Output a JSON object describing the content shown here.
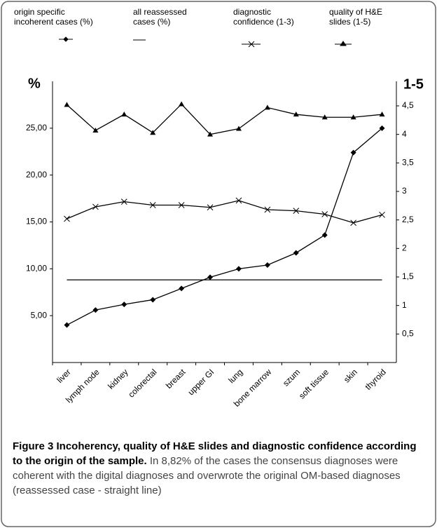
{
  "chart_data": {
    "type": "line",
    "y_axis_title": "%",
    "y2_axis_title": "1-5",
    "categories": [
      "liver",
      "lymph node",
      "kidney",
      "colorectal",
      "breast",
      "upper GI",
      "lung",
      "bone marrow",
      "szum",
      "soft tissue",
      "skin",
      "thyroid"
    ],
    "series": [
      {
        "name": "origin specific incoherent cases (%)",
        "color": "#000000",
        "marker": "diamond",
        "axis": "y",
        "values": [
          4.0,
          5.6,
          6.2,
          6.7,
          7.9,
          9.1,
          10.0,
          10.4,
          11.7,
          13.6,
          22.4,
          25.0
        ]
      },
      {
        "name": "all reassessed cases (%)",
        "color": "#000000",
        "marker": "none",
        "axis": "y",
        "values": [
          8.82,
          8.82,
          8.82,
          8.82,
          8.82,
          8.82,
          8.82,
          8.82,
          8.82,
          8.82,
          8.82,
          8.82
        ]
      },
      {
        "name": "diagnostic confidence (1-3)",
        "color": "#000000",
        "marker": "x",
        "axis": "y2",
        "values": [
          2.52,
          2.73,
          2.82,
          2.76,
          2.76,
          2.72,
          2.84,
          2.68,
          2.66,
          2.6,
          2.45,
          2.59
        ]
      },
      {
        "name": "quality of H&E slides (1-5)",
        "color": "#000000",
        "marker": "triangle",
        "axis": "y2",
        "values": [
          4.52,
          4.07,
          4.35,
          4.03,
          4.53,
          4.0,
          4.1,
          4.47,
          4.35,
          4.3,
          4.3,
          4.35
        ]
      }
    ],
    "ylim": [
      0,
      30
    ],
    "yticks": [
      {
        "value": 5,
        "label": "5,00"
      },
      {
        "value": 10,
        "label": "10,00"
      },
      {
        "value": 15,
        "label": "15,00"
      },
      {
        "value": 20,
        "label": "20,00"
      },
      {
        "value": 25,
        "label": "25,00"
      }
    ],
    "y2lim": [
      0,
      4.93
    ],
    "y2ticks": [
      {
        "value": 0.5,
        "label": "0,5"
      },
      1,
      {
        "value": 1.5,
        "label": "1,5"
      },
      2,
      {
        "value": 2.5,
        "label": "2,5"
      },
      3,
      {
        "value": 3.5,
        "label": "3,5"
      },
      4,
      {
        "value": 4.5,
        "label": "4,5"
      }
    ],
    "grid": false
  },
  "caption": {
    "bold": "Figure 3 Incoherency, quality of H&E slides and diagnostic confidence according to the origin of the sample.",
    "text": " In 8,82% of the cases the consensus diagnoses were coherent with the digital diagnoses and overwrote the original OM-based diagnoses (reassessed case - straight line)"
  }
}
